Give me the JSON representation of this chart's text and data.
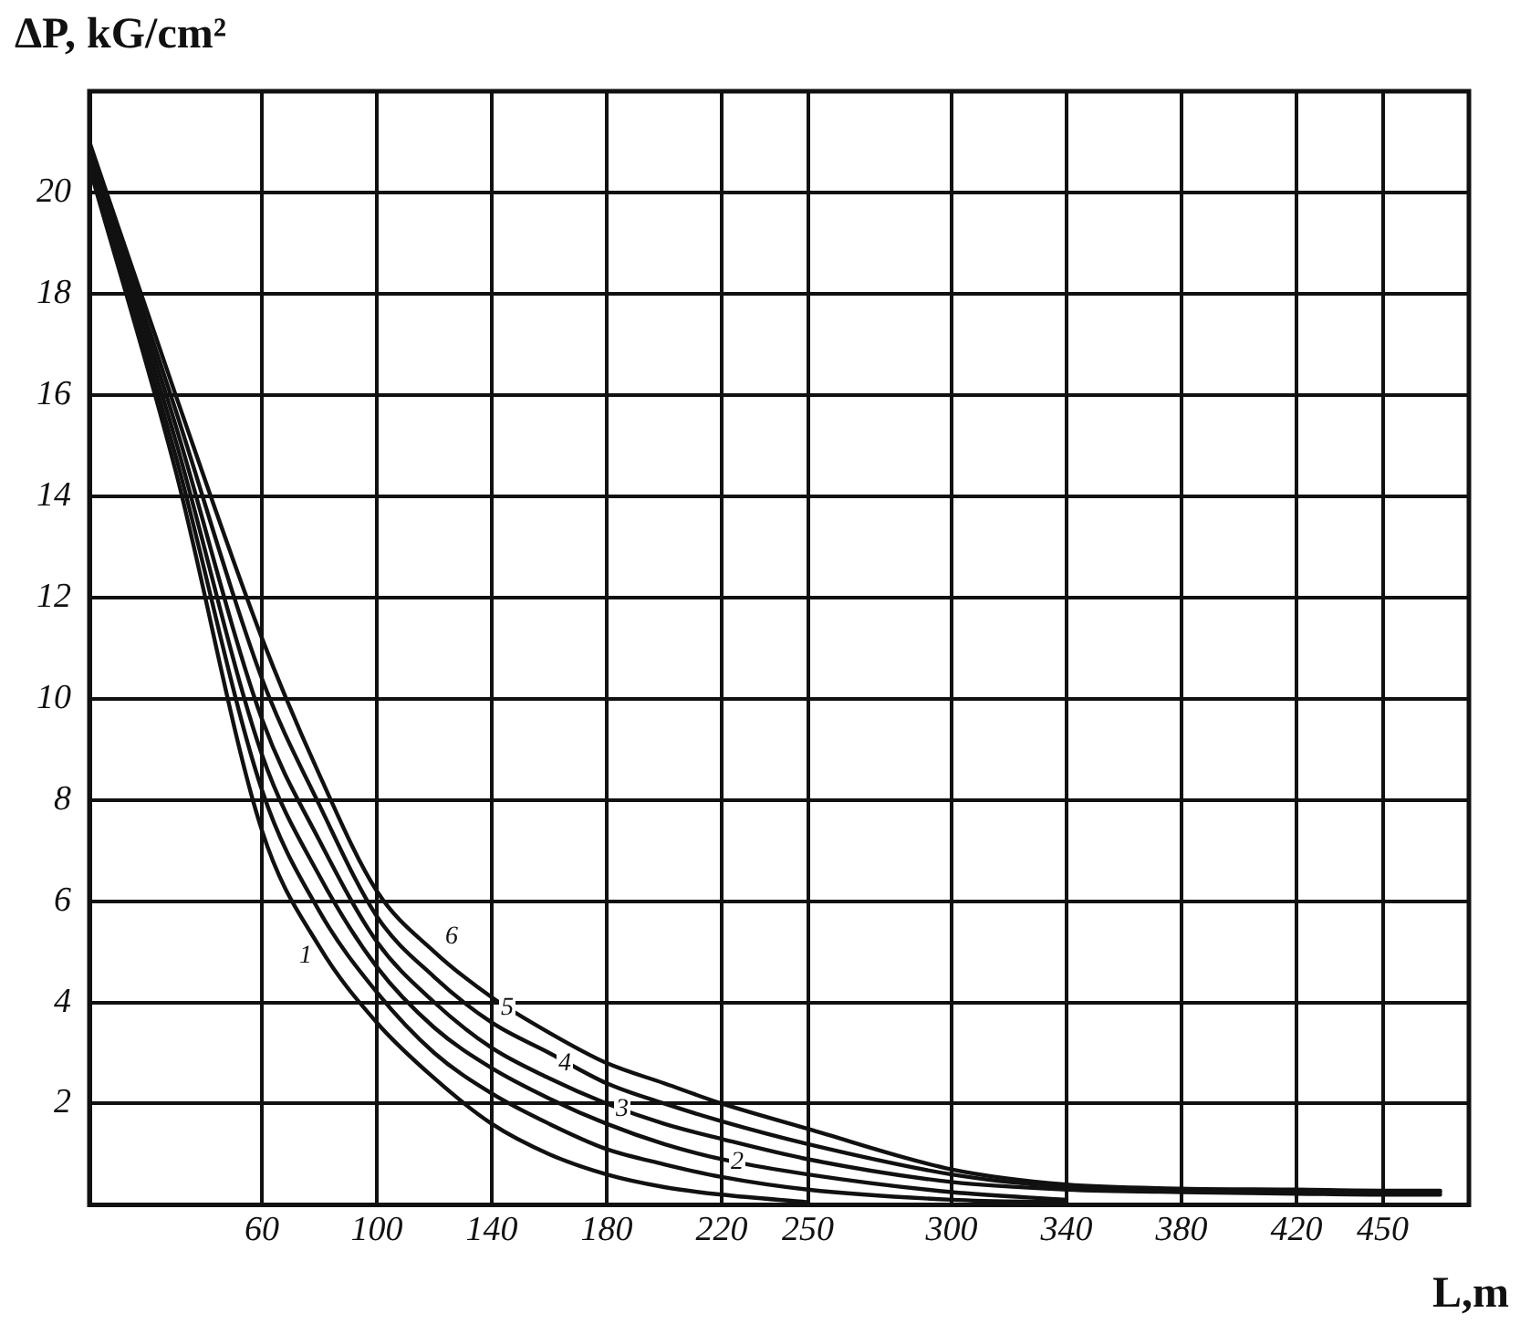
{
  "chart_data": {
    "type": "line",
    "xlabel": "L,m",
    "ylabel": "ΔP, kG/cm²",
    "x": [
      0,
      30,
      60,
      80,
      100,
      120,
      140,
      160,
      180,
      200,
      220,
      250,
      300,
      340,
      380,
      420,
      450,
      470
    ],
    "series": [
      {
        "name": "1",
        "color": "#111111",
        "values": [
          20.5,
          14.5,
          7.4,
          5.1,
          3.6,
          2.5,
          1.6,
          1.0,
          0.6,
          0.35,
          0.2,
          0.05,
          null,
          null,
          null,
          null,
          null,
          null
        ]
      },
      {
        "name": "2",
        "color": "#111111",
        "values": [
          20.6,
          14.8,
          8.2,
          5.8,
          4.2,
          3.0,
          2.2,
          1.6,
          1.1,
          0.8,
          0.55,
          0.3,
          0.1,
          0.05,
          null,
          null,
          null,
          null
        ]
      },
      {
        "name": "3",
        "color": "#111111",
        "values": [
          20.7,
          15.1,
          8.9,
          6.5,
          4.7,
          3.5,
          2.7,
          2.1,
          1.6,
          1.2,
          0.9,
          0.6,
          0.25,
          0.1,
          null,
          null,
          null,
          null
        ]
      },
      {
        "name": "4",
        "color": "#111111",
        "values": [
          20.8,
          15.4,
          9.6,
          7.2,
          5.2,
          4.0,
          3.1,
          2.5,
          2.0,
          1.6,
          1.3,
          0.9,
          0.45,
          0.3,
          0.25,
          0.22,
          0.2,
          0.2
        ]
      },
      {
        "name": "5",
        "color": "#111111",
        "values": [
          20.9,
          15.7,
          10.4,
          7.9,
          5.7,
          4.5,
          3.6,
          3.0,
          2.4,
          2.0,
          1.65,
          1.2,
          0.6,
          0.35,
          0.28,
          0.26,
          0.25,
          0.25
        ]
      },
      {
        "name": "6",
        "color": "#111111",
        "values": [
          21.0,
          16,
          11.2,
          8.5,
          6.2,
          5.0,
          4.1,
          3.4,
          2.8,
          2.4,
          2.0,
          1.5,
          0.7,
          0.4,
          0.32,
          0.3,
          0.28,
          0.28
        ]
      }
    ],
    "xlim": [
      0,
      480
    ],
    "xticks": [
      60,
      100,
      140,
      180,
      220,
      250,
      300,
      340,
      380,
      420,
      450
    ],
    "ylim": [
      0,
      22
    ],
    "yticks": [
      2,
      4,
      6,
      8,
      10,
      12,
      14,
      16,
      18,
      20
    ],
    "grid": true,
    "legend": false,
    "marker": "none",
    "line_style": "solid"
  }
}
